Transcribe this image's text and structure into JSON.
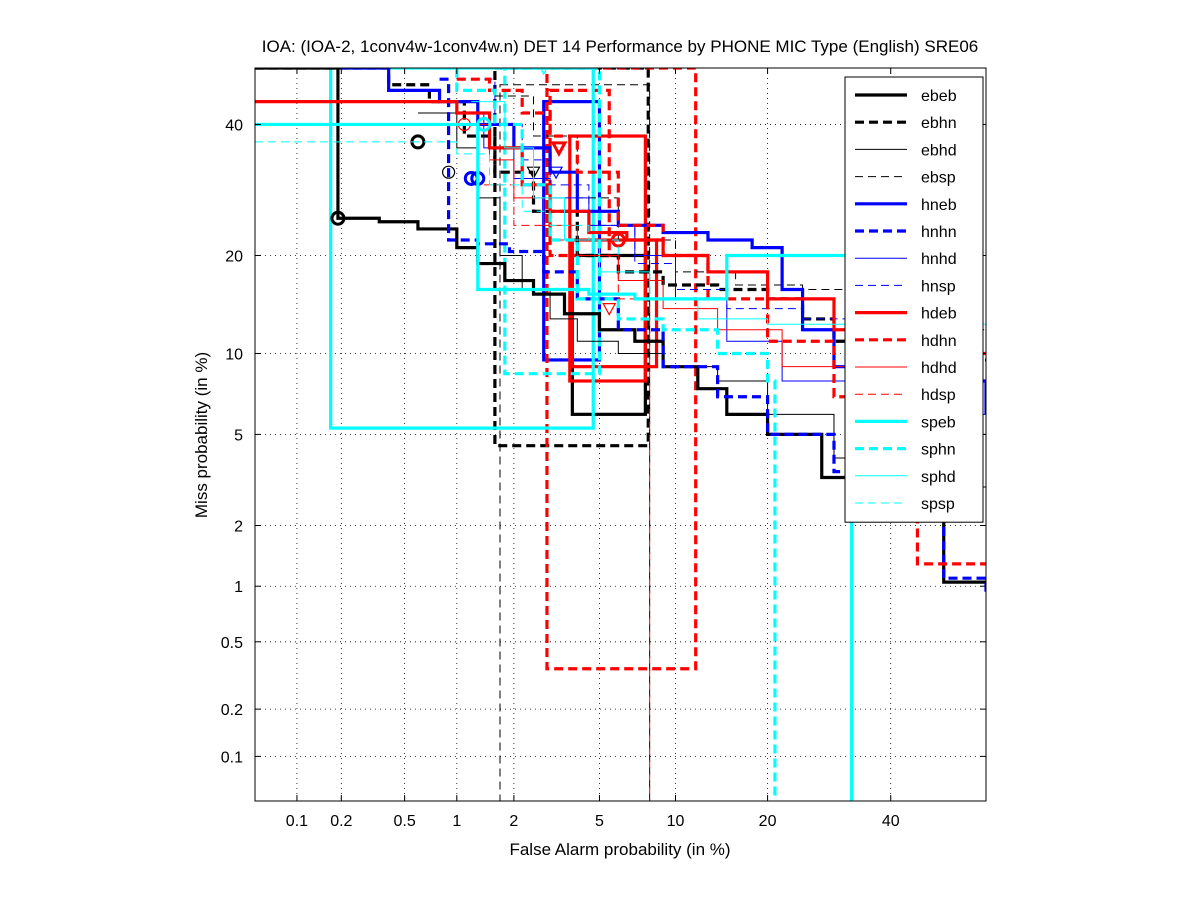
{
  "chart_data": {
    "type": "line",
    "title": "IOA: (IOA-2, 1conv4w-1conv4w.n) DET 14 Performance by PHONE MIC Type (English) SRE06",
    "xlabel": "False Alarm probability (in %)",
    "ylabel": "Miss probability (in %)",
    "xscale": "probit",
    "yscale": "probit",
    "xlim": [
      0.05,
      58
    ],
    "ylim": [
      0.05,
      50
    ],
    "x_ticks": [
      0.1,
      0.2,
      0.5,
      1,
      2,
      5,
      10,
      20,
      40
    ],
    "x_tick_labels": [
      "0.1",
      "0.2",
      "0.5",
      "1",
      "2",
      "5",
      "10",
      "20",
      "40"
    ],
    "y_ticks": [
      0.1,
      0.2,
      0.5,
      1,
      2,
      5,
      10,
      20,
      40
    ],
    "y_tick_labels": [
      "0.1",
      "0.2",
      "0.5",
      "1",
      "2",
      "5",
      "10",
      "20",
      "40"
    ],
    "grid": true,
    "legend_position": "top-right",
    "series": [
      {
        "name": "ebeb",
        "color": "#000000",
        "style": "solid-thick",
        "x": [
          0.05,
          0.19,
          0.19,
          0.35,
          0.6,
          1.0,
          1.3,
          1.8,
          2.5,
          3.5,
          5,
          7,
          9,
          12,
          15,
          20,
          28,
          40,
          50,
          58
        ],
        "y": [
          50,
          50,
          25,
          24.5,
          23.5,
          21,
          19,
          17,
          15.5,
          13.5,
          12,
          11,
          9,
          7.5,
          6,
          5,
          3.3,
          2.2,
          1.05,
          1.05
        ],
        "marker": {
          "shape": "circle",
          "x": 0.19,
          "y": 25
        }
      },
      {
        "name": "ebhn",
        "color": "#000000",
        "style": "dashed-thick",
        "x": [
          0.05,
          0.4,
          0.7,
          1.1,
          1.6,
          2.5,
          4,
          6,
          9,
          14,
          20,
          25,
          30,
          40,
          58
        ],
        "y": [
          50,
          47,
          44,
          38,
          32,
          26,
          20,
          18,
          16.5,
          16,
          15,
          13,
          11,
          9.5,
          9.5
        ],
        "marker": {
          "shape": "circle",
          "x": 0.6,
          "y": 37
        }
      },
      {
        "name": "ebhd",
        "color": "#000000",
        "style": "solid-thin",
        "x": [
          0.6,
          1.0,
          1.3,
          1.7,
          2.2,
          3.0,
          4.0,
          6.0,
          9.0,
          14,
          20,
          30,
          45,
          58
        ],
        "y": [
          42,
          36,
          28,
          20,
          16,
          13,
          11,
          10,
          9,
          8,
          6,
          4,
          3,
          2
        ],
        "marker": {
          "shape": "circle",
          "x": 0.9,
          "y": 32
        }
      },
      {
        "name": "ebsp",
        "color": "#000000",
        "style": "dashed-thin",
        "x": [
          1.6,
          2.5,
          4.0,
          6.0,
          10,
          16,
          25,
          35,
          45,
          58
        ],
        "y": [
          45,
          38,
          28,
          22,
          18,
          16.5,
          16,
          14,
          12,
          12
        ],
        "marker": {
          "shape": "triangle-down",
          "x": 2.5,
          "y": 32
        }
      },
      {
        "name": "hneb",
        "color": "#0000ff",
        "style": "solid-thick",
        "x": [
          0.2,
          0.4,
          0.8,
          1.3,
          2.0,
          3.0,
          4.0,
          6.0,
          9.0,
          13,
          18,
          22,
          25,
          30,
          40,
          58
        ],
        "y": [
          50,
          46,
          44,
          40,
          36,
          32,
          26,
          24,
          23,
          22,
          21,
          16,
          12,
          9,
          8,
          6
        ],
        "marker": {
          "shape": "circle",
          "x": 1.2,
          "y": 31
        }
      },
      {
        "name": "hnhn",
        "color": "#0000ff",
        "style": "dashed-thick",
        "x": [
          0.8,
          0.9,
          1.3,
          1.9,
          2.8,
          4.0,
          6.0,
          9.0,
          14,
          20,
          30,
          40,
          50,
          58
        ],
        "y": [
          48,
          22,
          21.5,
          20.5,
          18,
          15,
          12,
          9,
          7,
          5,
          3.5,
          2.2,
          1.1,
          0.9
        ],
        "marker": {
          "shape": "circle",
          "x": 1.3,
          "y": 31
        }
      },
      {
        "name": "hnhd",
        "color": "#0000ff",
        "style": "solid-thin",
        "x": [
          1.0,
          1.4,
          2.0,
          3.0,
          4.5,
          7,
          10,
          15,
          22,
          35,
          58
        ],
        "y": [
          42,
          36,
          31,
          28,
          24,
          20,
          15,
          11,
          8,
          6,
          5
        ]
      },
      {
        "name": "hnsp",
        "color": "#0000ff",
        "style": "dashed-thin",
        "x": [
          1.2,
          1.6,
          2.2,
          3.0,
          4.5,
          7,
          10,
          15,
          25,
          40,
          58
        ],
        "y": [
          48,
          40,
          34,
          30,
          24,
          19,
          16,
          14,
          13,
          12,
          12
        ],
        "marker": {
          "shape": "triangle-down",
          "x": 3.2,
          "y": 32
        }
      },
      {
        "name": "hdeb",
        "color": "#ff0000",
        "style": "solid-thick",
        "x": [
          0.05,
          0.6,
          1.0,
          1.5,
          2.2,
          3.0,
          4.5,
          6.5,
          9,
          13,
          20,
          30,
          40,
          58
        ],
        "y": [
          44,
          44,
          42,
          36,
          30,
          26,
          23,
          22,
          20,
          18,
          15,
          12,
          10,
          10
        ],
        "marker": {
          "shape": "circle",
          "x": 6.0,
          "y": 22
        }
      },
      {
        "name": "hdhn",
        "color": "#ff0000",
        "style": "dashed-thick",
        "x": [
          1.0,
          1.5,
          2.2,
          3.0,
          4.0,
          6.0,
          9.0,
          13,
          20,
          30,
          40,
          45,
          58
        ],
        "y": [
          48,
          46,
          42,
          38,
          32,
          24,
          20,
          15,
          11,
          7,
          4,
          1.3,
          1.3
        ],
        "marker": {
          "shape": "triangle-down",
          "x": 3.3,
          "y": 36
        }
      },
      {
        "name": "hdhd",
        "color": "#ff0000",
        "style": "solid-thin",
        "x": [
          1.1,
          1.5,
          2.0,
          2.8,
          4.0,
          6.0,
          9.0,
          14,
          22,
          35,
          58
        ],
        "y": [
          40,
          34,
          28,
          24,
          20,
          17,
          14,
          12,
          9,
          5,
          2
        ],
        "marker": {
          "shape": "circle",
          "x": 1.1,
          "y": 40
        }
      },
      {
        "name": "hdsp",
        "color": "#ff0000",
        "style": "dashed-thin",
        "x": [
          1.4,
          2.0,
          3.0,
          4.0,
          6.0,
          8.0,
          8.0
        ],
        "y": [
          30,
          24,
          22,
          20,
          15,
          12,
          0.05
        ],
        "marker": {
          "shape": "triangle-down",
          "x": 5.5,
          "y": 14
        }
      },
      {
        "name": "speb",
        "color": "#00ffff",
        "style": "solid-thick",
        "x": [
          0.05,
          0.9,
          1.3,
          1.3,
          2.0,
          3.0,
          4.5,
          7.0,
          10,
          15,
          22,
          30,
          33,
          33
        ],
        "y": [
          40,
          40,
          40,
          16,
          16,
          16,
          15.5,
          15,
          15,
          20,
          20,
          20,
          20,
          0.05
        ],
        "marker": {
          "shape": "circle",
          "x": 1.4,
          "y": 40
        }
      },
      {
        "name": "sphn",
        "color": "#00ffff",
        "style": "dashed-thick",
        "x": [
          0.7,
          1.0,
          1.6,
          2.2,
          3.0,
          4.0,
          6.0,
          9.0,
          14,
          20,
          21,
          21
        ],
        "y": [
          50,
          46,
          40,
          30,
          22,
          15,
          13,
          12,
          10,
          8,
          8,
          0.05
        ]
      },
      {
        "name": "sphd",
        "color": "#00ffff",
        "style": "solid-thin",
        "x": [
          1.2,
          1.8,
          2.5,
          3.5,
          5.0,
          8.0,
          12,
          20,
          35,
          58
        ],
        "y": [
          44,
          36,
          28,
          22,
          18,
          15,
          13,
          12.5,
          12.5,
          12.5
        ],
        "marker": {
          "shape": "triangle-down",
          "x": 2.8,
          "y": 50
        }
      },
      {
        "name": "spsp",
        "color": "#00ffff",
        "style": "dashed-thin",
        "x": [
          0.05,
          0.6,
          1.0,
          1.5,
          2.2,
          3.0,
          4.5,
          6.0
        ],
        "y": [
          37,
          37,
          35,
          30,
          26,
          24,
          22,
          20
        ]
      }
    ],
    "rectangles": [
      {
        "series": "ebeb",
        "x": [
          3.8,
          7.7
        ],
        "y": [
          6,
          20
        ]
      },
      {
        "series": "ebhn",
        "x": [
          1.6,
          7.9
        ],
        "y": [
          4.5,
          50
        ]
      },
      {
        "series": "ebsp",
        "x": [
          1.7,
          8.0
        ],
        "y": [
          0.05,
          47
        ]
      },
      {
        "series": "hneb",
        "x": [
          2.8,
          5.0
        ],
        "y": [
          9.5,
          44
        ]
      },
      {
        "series": "hdeb",
        "x": [
          3.7,
          7.7
        ],
        "y": [
          8,
          38
        ]
      },
      {
        "series": "hdeb",
        "x": [
          3.8,
          8.5
        ],
        "y": [
          9,
          22
        ]
      },
      {
        "series": "hdhn",
        "x": [
          2.9,
          11.8
        ],
        "y": [
          0.35,
          50
        ]
      },
      {
        "series": "hdhn",
        "x": [
          3.0,
          5.5
        ],
        "y": [
          20,
          46
        ]
      },
      {
        "series": "speb",
        "x": [
          0.17,
          4.7
        ],
        "y": [
          5.3,
          50
        ]
      },
      {
        "series": "sphn",
        "x": [
          1.8,
          5.0
        ],
        "y": [
          8.5,
          50
        ]
      }
    ]
  }
}
